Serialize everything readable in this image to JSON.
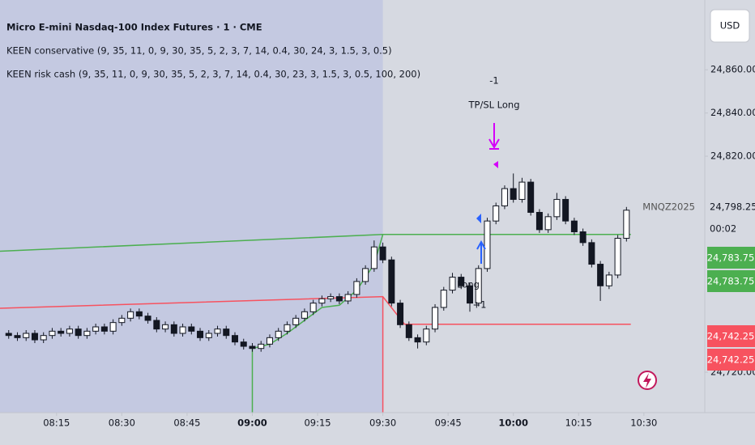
{
  "header": {
    "title": "Micro E-mini Nasdaq-100 Index Futures · 1 · CME",
    "indicators": [
      "KEEN conservative (9, 35, 11, 0, 9, 30, 35, 5, 2, 3, 7, 14, 0.4, 30, 24, 3, 1.5, 3, 0.5)",
      "KEEN risk cash (9, 35, 11, 0, 9, 30, 35, 5, 2, 3, 7, 14, 0.4, 30, 23, 3, 1.5, 3, 0.5, 100, 200)"
    ],
    "currency": "USD"
  },
  "chart_data": {
    "type": "candlestick",
    "xlim": [
      "08:02",
      "10:44"
    ],
    "ylim": [
      24701.3,
      24892.3
    ],
    "xticks": [
      "08:15",
      "08:30",
      "08:45",
      "09:00",
      "09:15",
      "09:30",
      "09:45",
      "10:00",
      "10:15",
      "10:30"
    ],
    "yticks": [
      {
        "value": 24720,
        "label": "24,720.00"
      },
      {
        "value": 24820,
        "label": "24,820.00"
      },
      {
        "value": 24840,
        "label": "24,840.00"
      },
      {
        "value": 24860,
        "label": "24,860.00"
      }
    ],
    "session_end": "09:30",
    "up_color": "#ffffff",
    "down_color": "#131722",
    "x": [
      "08:04",
      "08:06",
      "08:08",
      "08:10",
      "08:12",
      "08:14",
      "08:16",
      "08:18",
      "08:20",
      "08:22",
      "08:24",
      "08:26",
      "08:28",
      "08:30",
      "08:32",
      "08:34",
      "08:36",
      "08:38",
      "08:40",
      "08:42",
      "08:44",
      "08:46",
      "08:48",
      "08:50",
      "08:52",
      "08:54",
      "08:56",
      "08:58",
      "09:00",
      "09:02",
      "09:04",
      "09:06",
      "09:08",
      "09:10",
      "09:12",
      "09:14",
      "09:16",
      "09:18",
      "09:20",
      "09:22",
      "09:24",
      "09:26",
      "09:28",
      "09:30",
      "09:32",
      "09:34",
      "09:36",
      "09:38",
      "09:40",
      "09:42",
      "09:44",
      "09:46",
      "09:48",
      "09:50",
      "09:52",
      "09:54",
      "09:56",
      "09:58",
      "10:00",
      "10:02",
      "10:04",
      "10:06",
      "10:08",
      "10:10",
      "10:12",
      "10:14",
      "10:16",
      "10:18",
      "10:20",
      "10:22",
      "10:24",
      "10:26"
    ],
    "ohlc": [
      [
        24738,
        24739.5,
        24735.5,
        24737
      ],
      [
        24737,
        24738.5,
        24734.5,
        24736
      ],
      [
        24736,
        24739.5,
        24734.5,
        24738
      ],
      [
        24738,
        24739.5,
        24733.5,
        24735
      ],
      [
        24735,
        24738.5,
        24733.5,
        24737
      ],
      [
        24737,
        24740.5,
        24735.5,
        24739
      ],
      [
        24739,
        24740.5,
        24736.5,
        24738
      ],
      [
        24738,
        24741.5,
        24736.5,
        24740
      ],
      [
        24740,
        24741.5,
        24735.5,
        24737
      ],
      [
        24737,
        24740.5,
        24735.5,
        24739
      ],
      [
        24739,
        24742.5,
        24737.5,
        24741
      ],
      [
        24741,
        24742.5,
        24737.5,
        24739
      ],
      [
        24739,
        24744.5,
        24737.5,
        24743
      ],
      [
        24743,
        24746.5,
        24741.5,
        24745
      ],
      [
        24745,
        24749.5,
        24743.5,
        24748
      ],
      [
        24748,
        24749.5,
        24744.5,
        24746
      ],
      [
        24746,
        24747.5,
        24742.5,
        24744
      ],
      [
        24744,
        24745.5,
        24738.5,
        24740
      ],
      [
        24740,
        24743.5,
        24738.5,
        24742
      ],
      [
        24742,
        24743.5,
        24736.5,
        24738
      ],
      [
        24738,
        24742.5,
        24736.5,
        24741
      ],
      [
        24741,
        24742.5,
        24737.5,
        24739
      ],
      [
        24739,
        24740.5,
        24734.5,
        24736
      ],
      [
        24736,
        24739.5,
        24734.5,
        24738
      ],
      [
        24738,
        24741.5,
        24736.5,
        24740
      ],
      [
        24740,
        24741.5,
        24735.5,
        24737
      ],
      [
        24737,
        24738.5,
        24732.5,
        24734
      ],
      [
        24734,
        24735.5,
        24730.5,
        24732
      ],
      [
        24732,
        24733.5,
        24729.5,
        24731
      ],
      [
        24731,
        24734.5,
        24729.5,
        24733
      ],
      [
        24733,
        24737.5,
        24731.5,
        24736
      ],
      [
        24736,
        24740.5,
        24734.5,
        24739
      ],
      [
        24739,
        24743.5,
        24737.5,
        24742
      ],
      [
        24742,
        24746.5,
        24740.5,
        24745
      ],
      [
        24745,
        24749.5,
        24743.5,
        24748
      ],
      [
        24748,
        24753.5,
        24746.5,
        24752
      ],
      [
        24752,
        24755.5,
        24750.5,
        24754
      ],
      [
        24754,
        24756.5,
        24752.5,
        24755
      ],
      [
        24755,
        24756.5,
        24751.5,
        24753
      ],
      [
        24753,
        24757.5,
        24751.5,
        24756
      ],
      [
        24756,
        24763.5,
        24754.5,
        24762
      ],
      [
        24762,
        24769.5,
        24760.5,
        24768
      ],
      [
        24768,
        24781,
        24766.5,
        24778
      ],
      [
        24778,
        24780,
        24770.5,
        24772
      ],
      [
        24772,
        24773.5,
        24750.5,
        24752
      ],
      [
        24752,
        24753.5,
        24740.5,
        24742
      ],
      [
        24742,
        24743.5,
        24734.5,
        24736
      ],
      [
        24736,
        24737.5,
        24731,
        24734
      ],
      [
        24734,
        24741.5,
        24732.5,
        24740
      ],
      [
        24740,
        24751.5,
        24738.5,
        24750
      ],
      [
        24750,
        24759.5,
        24748.5,
        24758
      ],
      [
        24758,
        24766,
        24756.5,
        24764
      ],
      [
        24764,
        24765.5,
        24758.5,
        24760
      ],
      [
        24760,
        24761.5,
        24748,
        24752
      ],
      [
        24752,
        24769.5,
        24750.5,
        24768
      ],
      [
        24768,
        24791.5,
        24766.5,
        24790
      ],
      [
        24790,
        24798.5,
        24788.5,
        24797
      ],
      [
        24797,
        24806.5,
        24795.5,
        24805
      ],
      [
        24805,
        24812,
        24798.5,
        24800
      ],
      [
        24800,
        24810,
        24798.5,
        24808
      ],
      [
        24808,
        24809.5,
        24792.5,
        24794
      ],
      [
        24794,
        24795.5,
        24784.5,
        24786
      ],
      [
        24786,
        24793.5,
        24784.5,
        24792
      ],
      [
        24792,
        24803,
        24790.5,
        24800
      ],
      [
        24800,
        24801.5,
        24788.5,
        24790
      ],
      [
        24790,
        24791.5,
        24783.5,
        24785
      ],
      [
        24785,
        24786.5,
        24778.5,
        24780
      ],
      [
        24780,
        24781.5,
        24768.5,
        24770
      ],
      [
        24770,
        24771.5,
        24753,
        24760
      ],
      [
        24760,
        24766.5,
        24758.5,
        24765
      ],
      [
        24765,
        24783.5,
        24763.5,
        24782
      ],
      [
        24782,
        24796.5,
        24780.5,
        24795
      ]
    ],
    "lines": [
      {
        "color": "#4caf50",
        "x": [
          "08:02",
          "09:30",
          "10:27"
        ],
        "values": [
          24776,
          24783.75,
          24783.75
        ]
      },
      {
        "color": "#4caf50",
        "x": [
          "09:00",
          "09:00",
          "09:04",
          "09:08",
          "09:12",
          "09:16",
          "09:20",
          "09:24",
          "09:28",
          "09:30"
        ],
        "values": [
          24701.3,
          24731,
          24733,
          24738,
          24744,
          24750,
          24751,
          24758,
          24770,
          24783.75
        ]
      },
      {
        "color": "#f7525f",
        "x": [
          "08:02",
          "09:30",
          "09:35",
          "10:27"
        ],
        "values": [
          24749.6,
          24755,
          24742.25,
          24742.25
        ]
      },
      {
        "color": "#f7525f",
        "x": [
          "09:30",
          "09:30"
        ],
        "values": [
          24701.3,
          24755
        ]
      }
    ],
    "annotations": {
      "exit_qty": "-1",
      "exit_label": "TP/SL Long",
      "entry_label": "Long",
      "entry_qty": "+1"
    },
    "symbol": "MNQZ2025",
    "last_price": "24,798.25",
    "countdown": "00:02",
    "price_labels": [
      {
        "label": "24,783.75",
        "color": "#4caf50"
      },
      {
        "label": "24,783.75",
        "color": "#4caf50"
      },
      {
        "label": "24,742.25",
        "color": "#f7525f"
      },
      {
        "label": "24,742.25",
        "color": "#f7525f"
      }
    ]
  }
}
